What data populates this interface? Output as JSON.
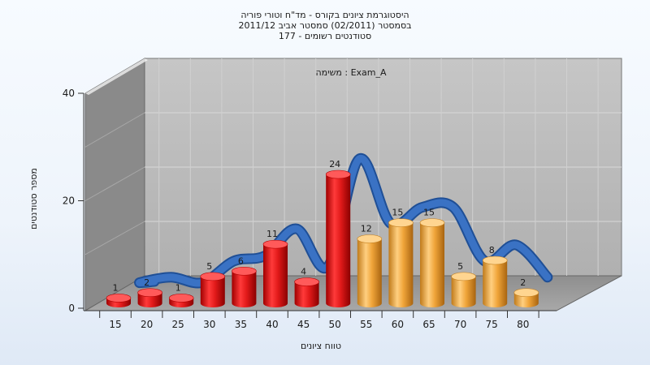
{
  "chart_data": {
    "type": "bar",
    "title_lines": [
      "היסטוגרמת ציונים בקורס - מד\"ח וטורי פוריה",
      "בסמסטר  (02/2011)  סמסטר אביב 2011/12",
      "סטודנטים רשומים - 177"
    ],
    "annotation": "משימה : Exam_A",
    "xlabel": "טווח ציונים",
    "ylabel": "מספר סטודנטים",
    "ylim": [
      0,
      40
    ],
    "yticks": [
      0,
      20,
      40
    ],
    "categories": [
      "15",
      "20",
      "25",
      "30",
      "35",
      "40",
      "45",
      "50",
      "55",
      "60",
      "65",
      "70",
      "75",
      "80"
    ],
    "values": [
      1,
      2,
      1,
      5,
      6,
      11,
      4,
      24,
      12,
      15,
      15,
      5,
      8,
      2
    ],
    "series": [
      {
        "values": [
          1,
          2,
          1,
          5,
          6,
          11,
          4,
          24,
          12,
          15,
          15,
          5,
          8,
          2
        ]
      }
    ],
    "grid": true,
    "legend": "none",
    "colors": {
      "red_bars": "#e21a1a",
      "orange_bars": "#f0a53a",
      "trend_line": "#3a72c4",
      "plot_back": "#b8b8b8",
      "side_wall": "#8a8a8a",
      "floor": "#9a9a9a"
    }
  }
}
